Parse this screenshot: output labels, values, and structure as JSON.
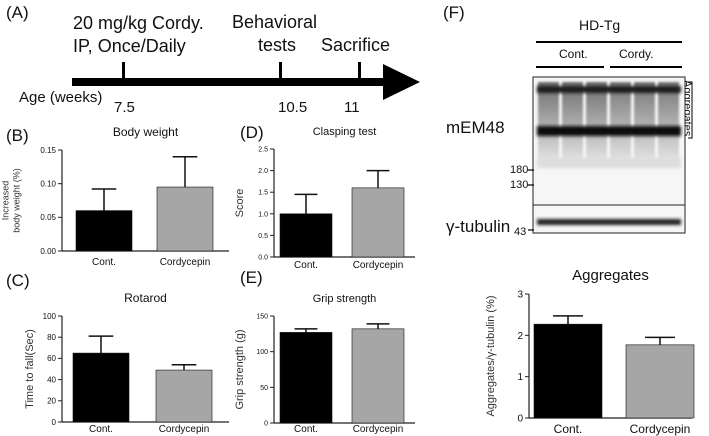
{
  "panel_letters": {
    "a": "(A)",
    "b": "(B)",
    "c": "(C)",
    "d": "(D)",
    "e": "(E)",
    "f": "(F)"
  },
  "timeline": {
    "treatment_line1": "20 mg/kg Cordy.",
    "treatment_line2": "IP, Once/Daily",
    "behavior_line1": "Behavioral",
    "behavior_line2": "tests",
    "sacrifice": "Sacrifice",
    "age_label": "Age (weeks)",
    "ticks": [
      "7.5",
      "10.5",
      "11"
    ]
  },
  "blot": {
    "group_header": "HD-Tg",
    "group_cont": "Cont.",
    "group_cordy": "Cordy.",
    "aggregates_label": "Aggregates",
    "antibody_top": "mEM48",
    "antibody_bottom": "γ-tubulin",
    "mw_180": "180",
    "mw_130": "130",
    "mw_43": "43"
  },
  "colors": {
    "control": "#000000",
    "cordycepin": "#a6a6a6",
    "axis": "#222222"
  },
  "chart_data": [
    {
      "id": "B",
      "type": "bar",
      "title": "Body weight",
      "categories": [
        "Cont.",
        "Cordycepin"
      ],
      "values": [
        0.06,
        0.095
      ],
      "errors": [
        0.032,
        0.045
      ],
      "ylabel": "Increased body weight (%)",
      "ylabel_lines": [
        "Increased",
        "body weight (%)"
      ],
      "ylim": [
        0,
        0.15
      ],
      "yticks": [
        "0.00",
        "0.05",
        "0.10",
        "0.15"
      ],
      "ytick_values": [
        0,
        0.05,
        0.1,
        0.15
      ]
    },
    {
      "id": "C",
      "type": "bar",
      "title": "Rotarod",
      "categories": [
        "Cont.",
        "Cordycepin"
      ],
      "values": [
        65,
        49
      ],
      "errors": [
        16,
        5
      ],
      "ylabel": "Time to fall(Sec)",
      "ylabel_lines": [
        "Time to fall(Sec)"
      ],
      "ylim": [
        0,
        100
      ],
      "yticks": [
        "0",
        "20",
        "40",
        "60",
        "80",
        "100"
      ],
      "ytick_values": [
        0,
        20,
        40,
        60,
        80,
        100
      ]
    },
    {
      "id": "D",
      "type": "bar",
      "title": "Clasping test",
      "categories": [
        "Cont.",
        "Cordycepin"
      ],
      "values": [
        1.0,
        1.6
      ],
      "errors": [
        0.45,
        0.4
      ],
      "ylabel": "Score",
      "ylabel_lines": [
        "Score"
      ],
      "ylim": [
        0,
        2.5
      ],
      "yticks": [
        "0.0",
        "0.5",
        "1.0",
        "1.5",
        "2.0",
        "2.5"
      ],
      "ytick_values": [
        0,
        0.5,
        1.0,
        1.5,
        2.0,
        2.5
      ]
    },
    {
      "id": "E",
      "type": "bar",
      "title": "Grip strength",
      "categories": [
        "Cont.",
        "Cordycepin"
      ],
      "values": [
        127,
        132
      ],
      "errors": [
        5,
        7
      ],
      "ylabel": "Grip strength (g)",
      "ylabel_lines": [
        "Grip strength (g)"
      ],
      "ylim": [
        0,
        150
      ],
      "yticks": [
        "0",
        "50",
        "100",
        "150"
      ],
      "ytick_values": [
        0,
        50,
        100,
        150
      ]
    },
    {
      "id": "F",
      "type": "bar",
      "title": "Aggregates",
      "categories": [
        "Cont.",
        "Cordycepin"
      ],
      "values": [
        2.27,
        1.77
      ],
      "errors": [
        0.2,
        0.18
      ],
      "ylabel": "Aggregates/γ-tubulin (%)",
      "ylabel_lines": [
        "Aggregates/γ-tubulin (%)"
      ],
      "ylim": [
        0,
        3
      ],
      "yticks": [
        "0",
        "1",
        "2",
        "3"
      ],
      "ytick_values": [
        0,
        1,
        2,
        3
      ]
    }
  ]
}
